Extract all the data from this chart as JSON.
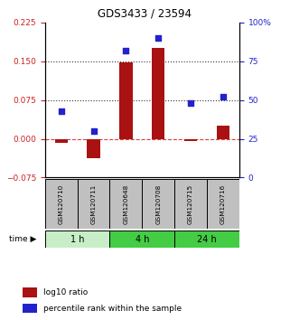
{
  "title": "GDS3433 / 23594",
  "samples": [
    "GSM120710",
    "GSM120711",
    "GSM120648",
    "GSM120708",
    "GSM120715",
    "GSM120716"
  ],
  "log10_ratio": [
    -0.008,
    -0.038,
    0.148,
    0.175,
    -0.004,
    0.025
  ],
  "percentile_rank": [
    43,
    30,
    82,
    90,
    48,
    52
  ],
  "left_ylim": [
    -0.075,
    0.225
  ],
  "right_ylim": [
    0,
    100
  ],
  "left_yticks": [
    -0.075,
    0,
    0.075,
    0.15,
    0.225
  ],
  "right_yticks": [
    0,
    25,
    50,
    75,
    100
  ],
  "hlines": [
    0.075,
    0.15
  ],
  "bar_color": "#aa1111",
  "square_color": "#2222cc",
  "zero_line_color": "#cc2222",
  "dotted_line_color": "#333333",
  "bg_color": "#ffffff",
  "sample_box_color": "#c0c0c0",
  "legend_bar_label": "log10 ratio",
  "legend_sq_label": "percentile rank within the sample",
  "left_ylabel_color": "#cc2222",
  "right_ylabel_color": "#2222cc",
  "time_groups": [
    {
      "label": "1 h",
      "start": 0,
      "end": 1,
      "color": "#c8eec8"
    },
    {
      "label": "4 h",
      "start": 2,
      "end": 3,
      "color": "#44cc44"
    },
    {
      "label": "24 h",
      "start": 4,
      "end": 5,
      "color": "#44cc44"
    }
  ]
}
